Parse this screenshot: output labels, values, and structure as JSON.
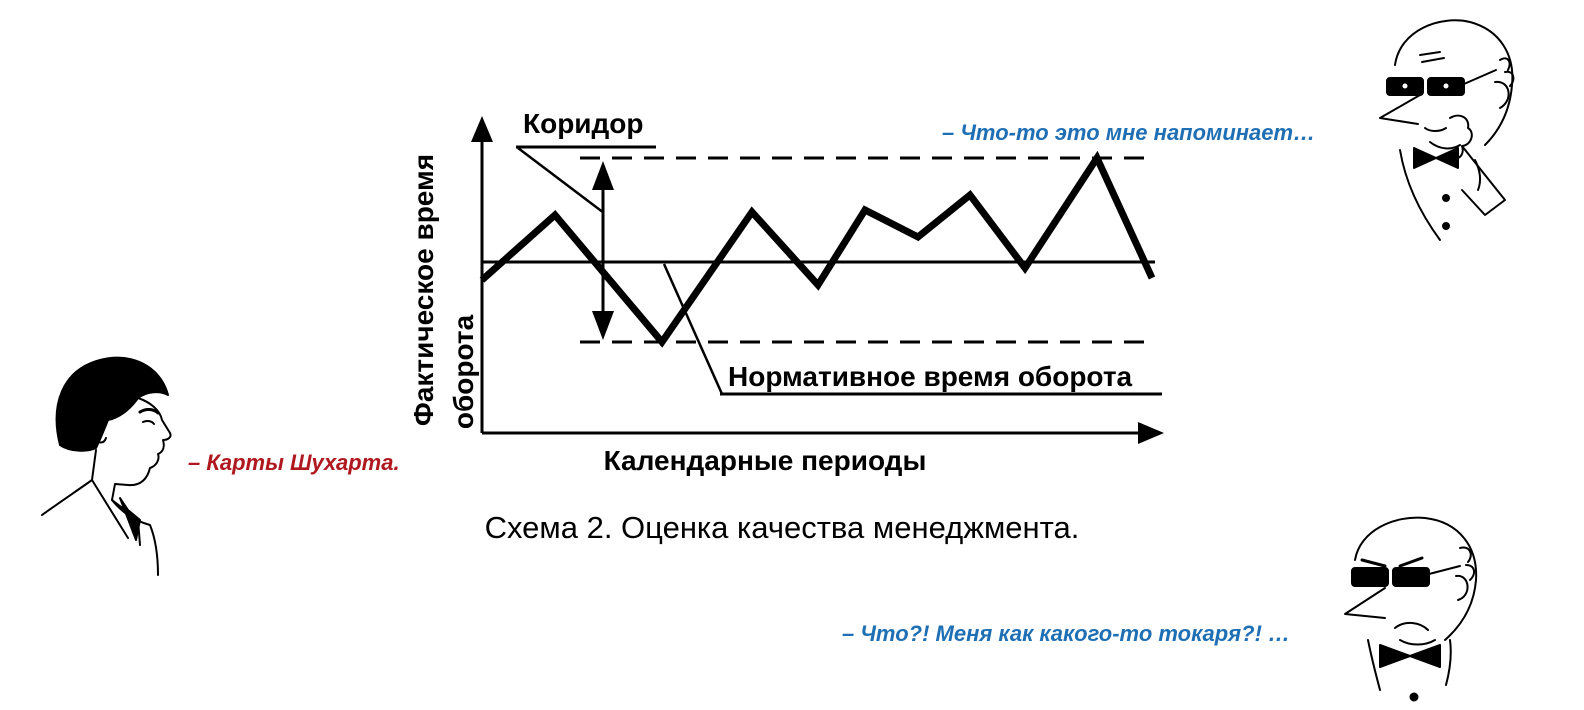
{
  "diagram": {
    "y_axis_label_line1": "Фактическое время",
    "y_axis_label_line2": "оборота",
    "x_axis_label": "Календарные периоды",
    "corridor_label": "Коридор",
    "norm_label": "Нормативное время оборота",
    "caption": "Схема 2. Оценка качества менеджмента."
  },
  "characters": {
    "young_man_quote": "– Карты Шухарта.",
    "old_man_top_quote": "– Что-то это мне напоминает…",
    "old_man_bottom_quote": "– Что?! Меня как какого-то токаря?! …"
  },
  "colors": {
    "young_man_quote": "#b0181f",
    "old_man_quote": "#1f6fb5",
    "ink": "#000000"
  }
}
